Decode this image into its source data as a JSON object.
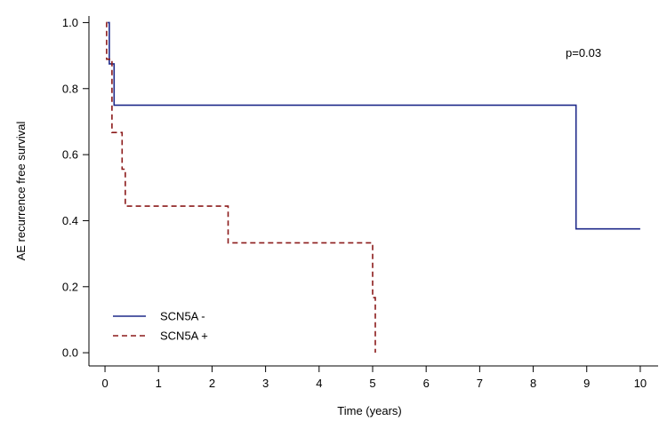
{
  "chart_data": {
    "type": "line",
    "subtype": "kaplan-meier step",
    "title": "",
    "xlabel": "Time (years)",
    "ylabel": "AE recurrence free survival",
    "xlim": [
      -0.3,
      10.35
    ],
    "ylim": [
      -0.04,
      1.02
    ],
    "x_ticks": [
      0,
      1,
      2,
      3,
      4,
      5,
      6,
      7,
      8,
      9,
      10
    ],
    "y_ticks": [
      "0.0",
      "0.2",
      "0.4",
      "0.6",
      "0.8",
      "1.0"
    ],
    "grid": false,
    "legend_position": "bottom-left",
    "annotation": "p=0.03",
    "series": [
      {
        "name": "SCN5A -",
        "color": "#1f2a8a",
        "style": "solid",
        "points": [
          [
            0.05,
            1.0
          ],
          [
            0.08,
            1.0
          ],
          [
            0.08,
            0.875
          ],
          [
            0.17,
            0.875
          ],
          [
            0.17,
            0.75
          ],
          [
            8.8,
            0.75
          ],
          [
            8.8,
            0.375
          ],
          [
            10.0,
            0.375
          ]
        ]
      },
      {
        "name": "SCN5A +",
        "color": "#8b1a1a",
        "style": "dashed",
        "points": [
          [
            0.02,
            1.0
          ],
          [
            0.03,
            1.0
          ],
          [
            0.03,
            0.889
          ],
          [
            0.13,
            0.889
          ],
          [
            0.13,
            0.667
          ],
          [
            0.32,
            0.667
          ],
          [
            0.32,
            0.556
          ],
          [
            0.38,
            0.556
          ],
          [
            0.38,
            0.444
          ],
          [
            2.3,
            0.444
          ],
          [
            2.3,
            0.333
          ],
          [
            5.0,
            0.333
          ],
          [
            5.0,
            0.167
          ],
          [
            5.05,
            0.167
          ],
          [
            5.05,
            0.0
          ]
        ]
      }
    ]
  }
}
